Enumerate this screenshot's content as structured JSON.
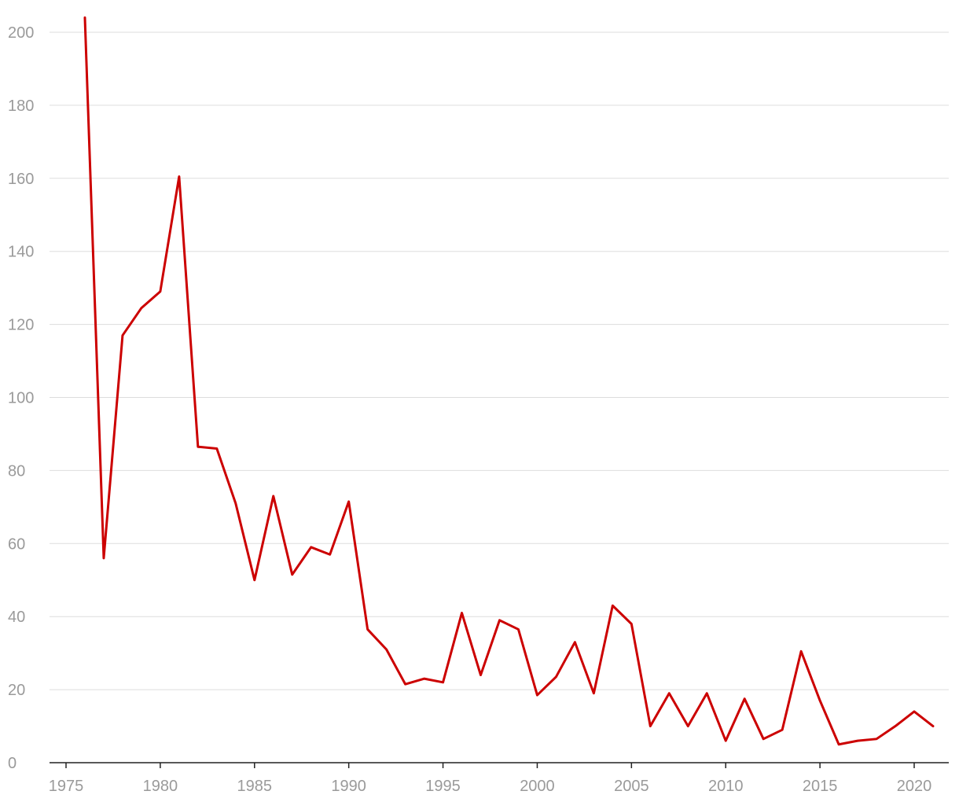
{
  "chart_data": {
    "type": "line",
    "title": "",
    "xlabel": "",
    "ylabel": "",
    "xlim": [
      1975,
      2022
    ],
    "ylim": [
      0,
      205
    ],
    "grid": true,
    "legend": "none",
    "colors": {
      "series": "#cc0000",
      "grid": "#dddddd",
      "axis": "#222222",
      "tick_label": "#9a9a9a"
    },
    "x_ticks": [
      1975,
      1980,
      1985,
      1990,
      1995,
      2000,
      2005,
      2010,
      2015,
      2020
    ],
    "y_ticks": [
      0,
      20,
      40,
      60,
      80,
      100,
      120,
      140,
      160,
      180,
      200
    ],
    "x": [
      1976,
      1977,
      1978,
      1979,
      1980,
      1981,
      1982,
      1983,
      1984,
      1985,
      1986,
      1987,
      1988,
      1989,
      1990,
      1991,
      1992,
      1993,
      1994,
      1995,
      1996,
      1997,
      1998,
      1999,
      2000,
      2001,
      2002,
      2003,
      2004,
      2005,
      2006,
      2007,
      2008,
      2009,
      2010,
      2011,
      2012,
      2013,
      2014,
      2015,
      2016,
      2017,
      2018,
      2019,
      2020,
      2021
    ],
    "series": [
      {
        "values": [
          204,
          56,
          117,
          124.5,
          129,
          160.5,
          86.5,
          86,
          71,
          50,
          73,
          51.5,
          59,
          57,
          71.5,
          36.5,
          31,
          21.5,
          23,
          22,
          41,
          24,
          39,
          36.5,
          18.5,
          23.5,
          33,
          19,
          43,
          38,
          10,
          19,
          10,
          19,
          6,
          17.5,
          6.5,
          9,
          30.5,
          17,
          5,
          6,
          6.5,
          10,
          14,
          10
        ]
      }
    ]
  }
}
